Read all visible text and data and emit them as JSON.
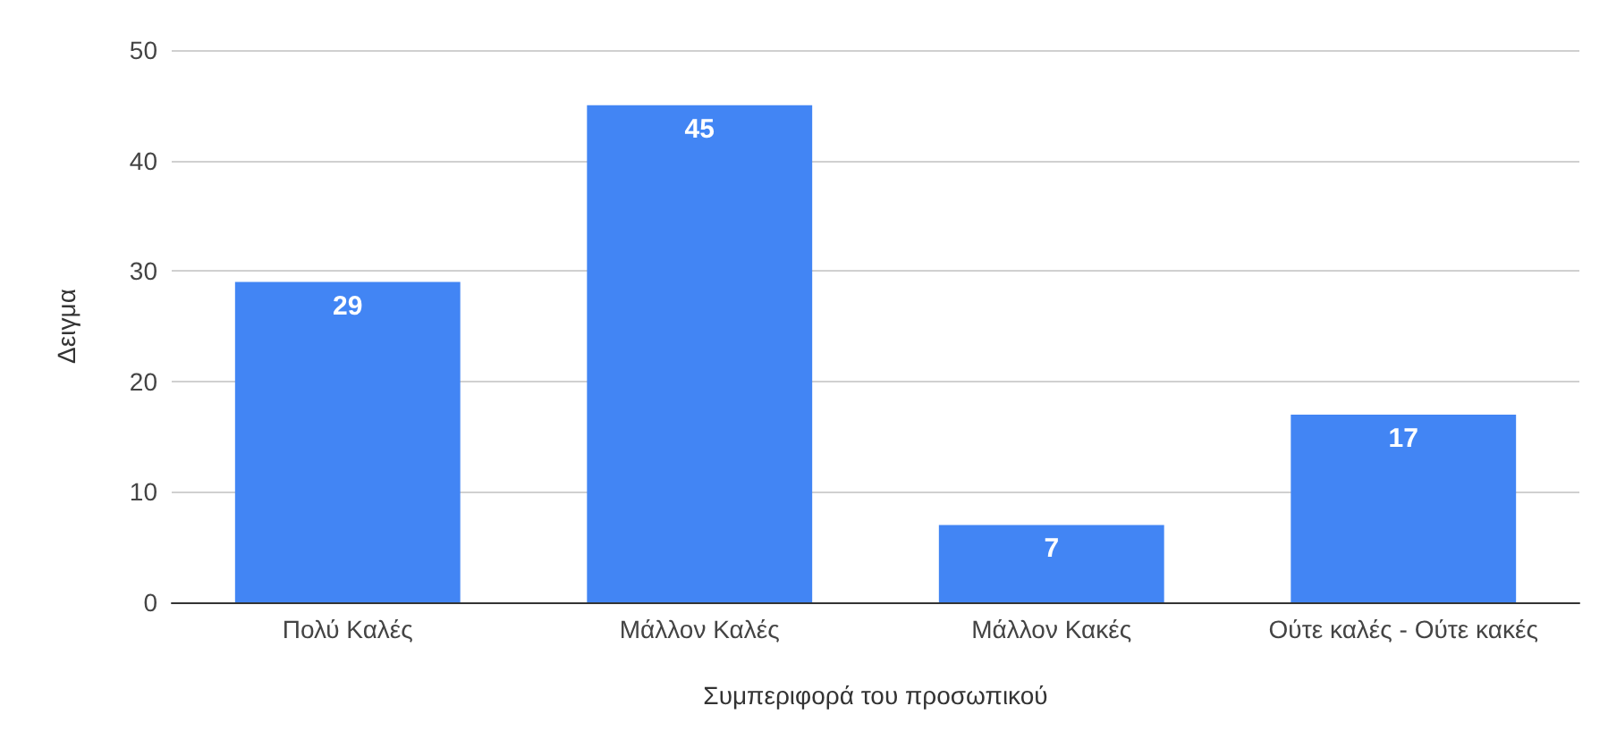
{
  "chart_data": {
    "type": "bar",
    "xlabel": "Συμπεριφορά του προσωπικού",
    "ylabel": "Δειγμα",
    "categories": [
      "Πολύ Καλές",
      "Μάλλον Καλές",
      "Μάλλον Κακές",
      "Ούτε καλές - Ούτε κακές"
    ],
    "values": [
      29,
      45,
      7,
      17
    ],
    "color": "#4285f4",
    "ylim": [
      0,
      50
    ],
    "yticks": [
      0,
      10,
      20,
      30,
      40,
      50
    ],
    "grid": "y",
    "data_labels": true
  }
}
